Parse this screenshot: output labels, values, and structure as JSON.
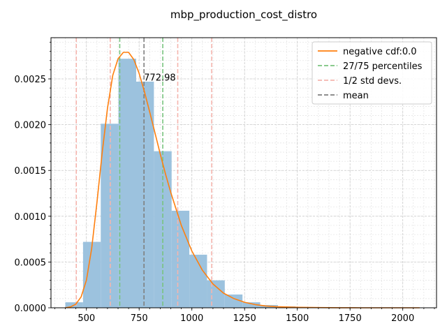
{
  "chart_data": {
    "type": "bar",
    "title": "mbp_production_cost_distro",
    "xlim": [
      332,
      2160
    ],
    "ylim": [
      0,
      0.00295
    ],
    "x_ticks": [
      500,
      750,
      1000,
      1250,
      1500,
      1750,
      2000
    ],
    "y_ticks": [
      0.0,
      0.0005,
      0.001,
      0.0015,
      0.002,
      0.0025
    ],
    "x_tick_labels": [
      "500",
      "750",
      "1000",
      "1250",
      "1500",
      "1750",
      "2000"
    ],
    "y_tick_labels": [
      "0.0000",
      "0.0005",
      "0.0010",
      "0.0015",
      "0.0020",
      "0.0025"
    ],
    "grid": true,
    "histogram": {
      "bin_edges": [
        400,
        484,
        568,
        652,
        736,
        820,
        904,
        988,
        1072,
        1156,
        1240,
        1324,
        1408,
        1492,
        1576,
        1660,
        1744,
        1828,
        1912,
        1996,
        2080
      ],
      "values": [
        6e-05,
        0.00072,
        0.00201,
        0.00272,
        0.00247,
        0.00171,
        0.00106,
        0.00058,
        0.0003,
        0.000145,
        6e-05,
        3e-05,
        1.5e-05,
        8e-06,
        4e-06,
        3e-06,
        2e-06,
        1e-06,
        1e-06,
        1e-06
      ],
      "color": "#9cc2de"
    },
    "series": [
      {
        "name": "negative cdf:0.0",
        "color": "#ff7f0e",
        "x": [
          400,
          425,
          450,
          475,
          500,
          525,
          550,
          575,
          600,
          625,
          650,
          675,
          700,
          725,
          750,
          775,
          800,
          825,
          850,
          875,
          900,
          950,
          1000,
          1050,
          1100,
          1150,
          1200,
          1250,
          1300,
          1350,
          1400,
          1500,
          1600,
          1700,
          1800,
          1900,
          2000,
          2080
        ],
        "y": [
          0.0,
          1e-05,
          4e-05,
          0.00012,
          0.0003,
          0.00065,
          0.00115,
          0.0017,
          0.00218,
          0.00254,
          0.00272,
          0.00279,
          0.00279,
          0.00271,
          0.00256,
          0.00236,
          0.00214,
          0.00191,
          0.00168,
          0.00146,
          0.00126,
          0.0009,
          0.00062,
          0.00041,
          0.00026,
          0.00016,
          0.0001,
          6e-05,
          3.5e-05,
          2e-05,
          1.2e-05,
          5e-06,
          2e-06,
          1e-06,
          0.0,
          0.0,
          0.0,
          0.0
        ]
      }
    ],
    "vlines": [
      {
        "group": "percentiles",
        "x": 658,
        "color": "#79c47f"
      },
      {
        "group": "percentiles",
        "x": 862,
        "color": "#79c47f"
      },
      {
        "group": "stddevs",
        "x": 452,
        "color": "#f5b5ae"
      },
      {
        "group": "stddevs",
        "x": 613,
        "color": "#f5b5ae"
      },
      {
        "group": "stddevs",
        "x": 933,
        "color": "#f5b5ae"
      },
      {
        "group": "stddevs",
        "x": 1094,
        "color": "#f5b5ae"
      },
      {
        "group": "mean",
        "x": 772.98,
        "color": "#7f7f7f"
      }
    ],
    "annotation": {
      "text": "772.98",
      "x": 772.98,
      "y": 0.00252
    },
    "legend": {
      "position": "top-right",
      "entries": [
        {
          "label": "negative cdf:0.0",
          "color": "#ff7f0e",
          "dashed": false
        },
        {
          "label": "27/75 percentiles",
          "color": "#79c47f",
          "dashed": true
        },
        {
          "label": "1/2 std devs.",
          "color": "#f5b5ae",
          "dashed": true
        },
        {
          "label": "mean",
          "color": "#7f7f7f",
          "dashed": true
        }
      ]
    }
  }
}
